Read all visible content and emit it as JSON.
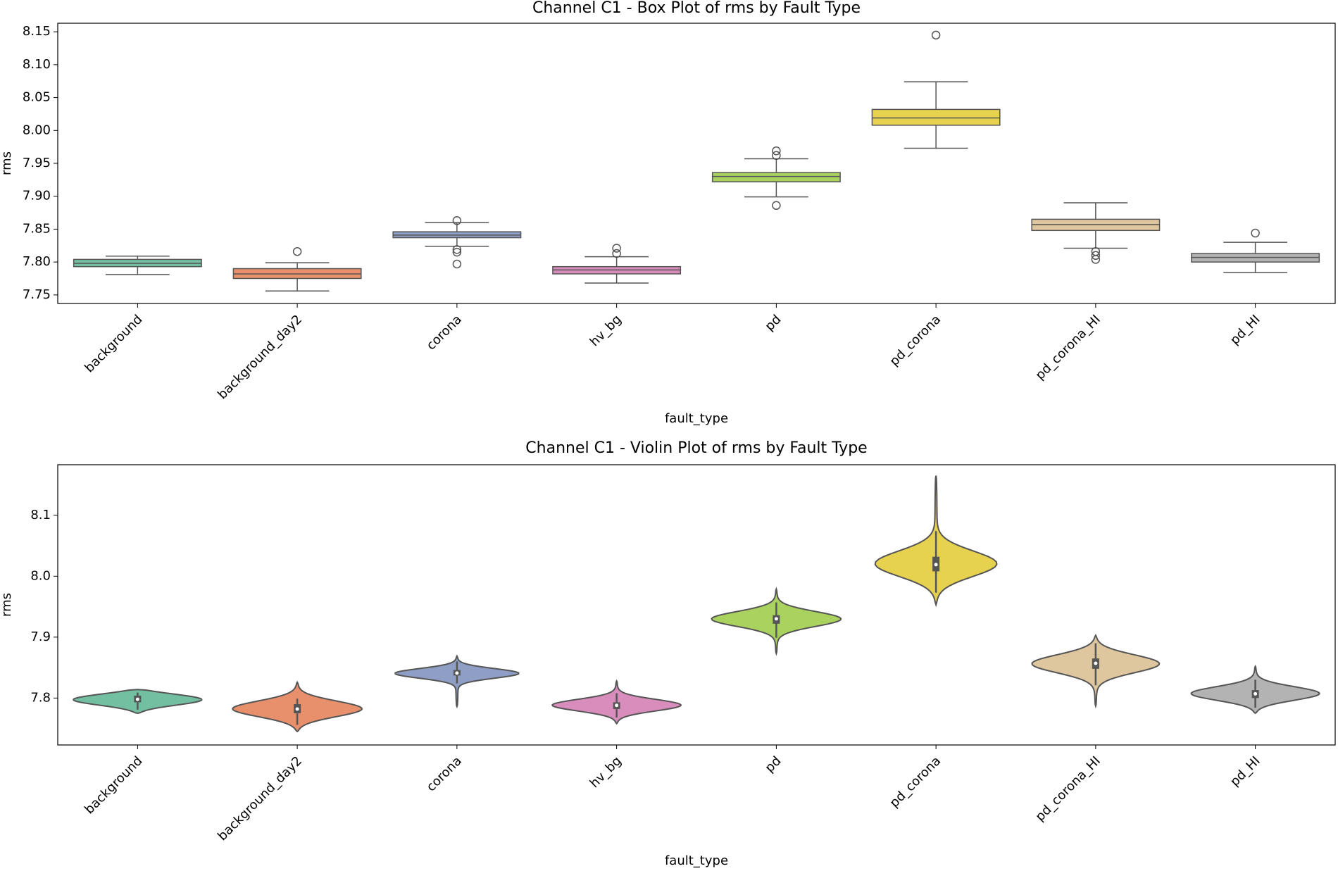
{
  "chart_data": [
    {
      "type": "box",
      "title": "Channel C1 - Box Plot of rms by Fault Type",
      "x_label": "fault_type",
      "y_label": "rms",
      "categories": [
        "background",
        "background_day2",
        "corona",
        "hv_bg",
        "pd",
        "pd_corona",
        "pd_corona_HI",
        "pd_HI"
      ],
      "colors": [
        "#72bfa1",
        "#e8906c",
        "#8e9ec4",
        "#d98dbd",
        "#a9d25e",
        "#e6d24e",
        "#dec69f",
        "#b3b3b3"
      ],
      "whisker_low": [
        7.781,
        7.756,
        7.824,
        7.768,
        7.899,
        7.973,
        7.821,
        7.784
      ],
      "q1": [
        7.793,
        7.775,
        7.837,
        7.782,
        7.922,
        8.008,
        7.848,
        7.8
      ],
      "median": [
        7.798,
        7.782,
        7.841,
        7.788,
        7.93,
        8.019,
        7.857,
        7.807
      ],
      "q3": [
        7.804,
        7.79,
        7.846,
        7.793,
        7.936,
        8.032,
        7.865,
        7.813
      ],
      "whisker_high": [
        7.809,
        7.799,
        7.86,
        7.808,
        7.957,
        8.074,
        7.89,
        7.83
      ],
      "outliers": [
        [],
        [
          7.816
        ],
        [
          7.863,
          7.819,
          7.815,
          7.797
        ],
        [
          7.821,
          7.813
        ],
        [
          7.969,
          7.962,
          7.886
        ],
        [
          8.145
        ],
        [
          7.816,
          7.81,
          7.804
        ],
        [
          7.844
        ]
      ],
      "ylim": [
        7.737,
        8.163
      ],
      "yticks": [
        7.75,
        {
          "value": 7.8,
          "label": "7.80"
        },
        7.85,
        {
          "value": 7.9,
          "label": "7.90"
        },
        7.95,
        {
          "value": 8.0,
          "label": "8.00"
        },
        8.05,
        {
          "value": 8.1,
          "label": "8.10"
        },
        8.15
      ]
    },
    {
      "type": "violin",
      "title": "Channel C1 - Violin Plot of rms by Fault Type",
      "x_label": "fault_type",
      "y_label": "rms",
      "categories": [
        "background",
        "background_day2",
        "corona",
        "hv_bg",
        "pd",
        "pd_corona",
        "pd_corona_HI",
        "pd_HI"
      ],
      "colors": [
        "#72bfa1",
        "#e8906c",
        "#8e9ec4",
        "#d98dbd",
        "#a9d25e",
        "#e6d24e",
        "#dec69f",
        "#b3b3b3"
      ],
      "min": [
        7.775,
        7.745,
        7.786,
        7.758,
        7.873,
        7.953,
        7.787,
        7.775
      ],
      "max": [
        7.814,
        7.826,
        7.869,
        7.828,
        7.979,
        8.165,
        7.903,
        7.852
      ],
      "whisker_low": [
        7.781,
        7.756,
        7.824,
        7.768,
        7.899,
        7.973,
        7.821,
        7.784
      ],
      "q1": [
        7.793,
        7.775,
        7.837,
        7.782,
        7.922,
        8.008,
        7.848,
        7.8
      ],
      "median": [
        7.798,
        7.782,
        7.841,
        7.788,
        7.93,
        8.019,
        7.857,
        7.807
      ],
      "q3": [
        7.804,
        7.79,
        7.846,
        7.793,
        7.936,
        8.032,
        7.865,
        7.813
      ],
      "whisker_high": [
        7.809,
        7.799,
        7.86,
        7.808,
        7.957,
        8.074,
        7.89,
        7.83
      ],
      "ylim": [
        7.723,
        8.183
      ],
      "yticks": [
        7.8,
        7.9,
        {
          "value": 8.0,
          "label": "8.0"
        },
        8.1
      ]
    }
  ]
}
